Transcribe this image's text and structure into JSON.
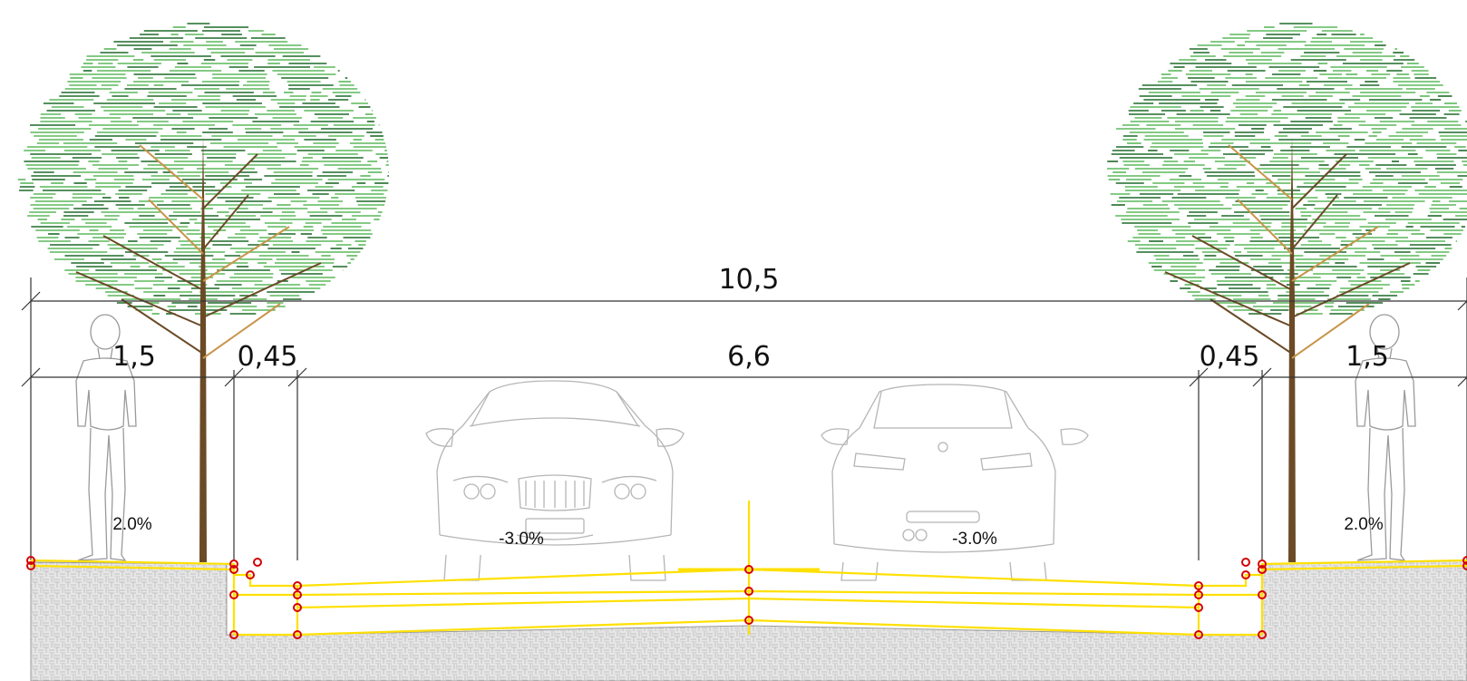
{
  "dimensions": {
    "total_width": "10,5",
    "left_sidewalk": "1,5",
    "left_curb": "0,45",
    "carriageway": "6,6",
    "right_curb": "0,45",
    "right_sidewalk": "1,5"
  },
  "slopes": {
    "left_sidewalk": "2.0%",
    "left_lane": "-3.0%",
    "right_lane": "-3.0%",
    "right_sidewalk": "2.0%"
  },
  "colors": {
    "foliage_light": "#5cb85c",
    "foliage_dark": "#1f6b2a",
    "trunk": "#6b4a26",
    "branch_accent": "#c8954a",
    "layer_line": "#ffe000",
    "node_marker": "#d40000",
    "ground_fill": "#d9d9d9",
    "dimension_line": "#333333",
    "outline": "#bdbdbd"
  },
  "icons": [
    "tree-icon",
    "pedestrian-icon",
    "car-front-icon",
    "car-rear-icon"
  ]
}
